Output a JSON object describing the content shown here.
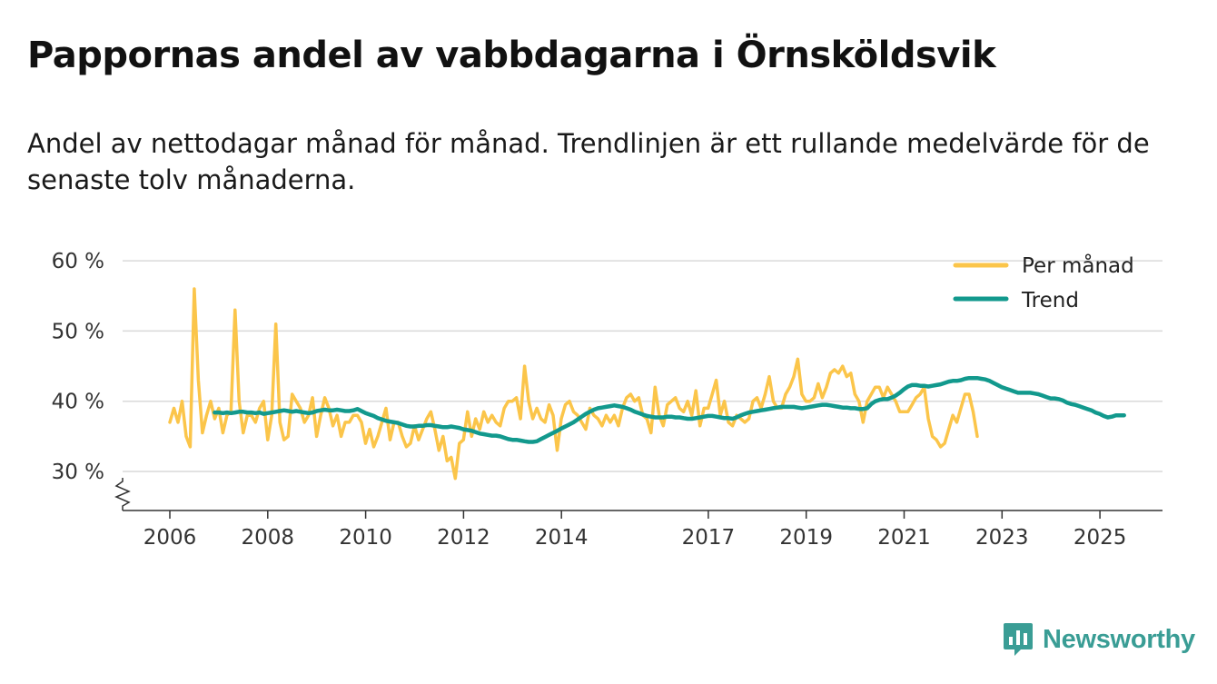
{
  "title": "Pappornas andel av vabbdagarna i Örnsköldsvik",
  "subtitle": "Andel av nettodagar månad för månad. Trendlinjen är ett rullande medelvärde för de senaste tolv månaderna.",
  "brand": {
    "name": "Newsworthy",
    "color": "#3a9d95",
    "icon": "bar-chart-speech-bubble-icon"
  },
  "colors": {
    "monthly": "#fbc54a",
    "trend": "#12998d",
    "grid": "#d9d9d9",
    "axis": "#333333"
  },
  "chart_data": {
    "type": "line",
    "ylim": [
      25,
      60
    ],
    "xlim": [
      2005.75,
      2025.35
    ],
    "yticks": [
      30,
      40,
      50,
      60
    ],
    "ytick_labels": [
      "30 %",
      "40 %",
      "50 %",
      "60 %"
    ],
    "xticks": [
      2006,
      2008,
      2010,
      2012,
      2014,
      2017,
      2019,
      2021,
      2023,
      2025
    ],
    "xtick_labels": [
      "2006",
      "2008",
      "2010",
      "2012",
      "2014",
      "2017",
      "2019",
      "2021",
      "2023",
      "2025"
    ],
    "y_axis_break": true,
    "legend": {
      "position": "top-right",
      "entries": [
        "Per månad",
        "Trend"
      ]
    },
    "series": [
      {
        "name": "Per månad",
        "x_start": 2006.0,
        "step": 0.0833,
        "values": [
          37,
          39,
          37,
          40,
          35,
          33.5,
          56,
          43,
          35.5,
          38,
          40,
          37.5,
          39,
          35.5,
          38,
          38.5,
          53,
          40,
          35.5,
          38,
          38,
          37,
          39,
          40,
          34.5,
          38,
          51,
          37,
          34.5,
          35,
          41,
          40,
          39,
          37,
          38,
          40.5,
          35,
          38,
          40.5,
          39,
          36.5,
          38,
          35,
          37,
          37,
          38,
          38,
          37,
          34,
          36,
          33.5,
          35,
          37,
          39,
          34.5,
          37,
          37,
          35,
          33.5,
          34,
          36.5,
          34.5,
          36,
          37.5,
          38.5,
          36,
          33,
          35,
          31.5,
          32,
          29,
          34,
          34.5,
          38.5,
          35,
          37.5,
          36,
          38.5,
          37,
          38,
          37,
          36.5,
          39,
          40,
          40,
          40.5,
          37.5,
          45,
          40,
          37.5,
          39,
          37.5,
          37,
          39.5,
          38,
          33,
          37.5,
          39.5,
          40,
          38.5,
          38,
          37,
          36,
          39,
          38,
          37.5,
          36.5,
          38,
          37,
          38,
          36.5,
          39,
          40.5,
          41,
          40,
          40.5,
          38,
          37.5,
          35.5,
          42,
          38,
          36.5,
          39.5,
          40,
          40.5,
          39,
          38.5,
          40,
          38,
          41.5,
          36.5,
          39,
          39,
          41,
          43,
          38,
          40,
          37,
          36.5,
          38,
          37.5,
          37,
          37.5,
          40,
          40.5,
          39,
          41,
          43.5,
          40,
          39,
          39,
          41,
          42,
          43.5,
          46,
          41,
          40,
          40,
          40.5,
          42.5,
          40.5,
          42,
          44,
          44.5,
          44,
          45,
          43.5,
          44,
          41,
          40,
          37,
          40,
          41,
          42,
          42,
          40.5,
          42,
          41,
          40,
          38.5,
          38.5,
          38.5,
          39.5,
          40.5,
          41,
          42,
          37.5,
          35,
          34.5,
          33.5,
          34,
          36,
          38,
          37,
          39,
          41,
          41,
          38.5,
          35
        ]
      },
      {
        "name": "Trend",
        "x_start": 2006.9167,
        "step": 0.0833,
        "values": [
          38.4,
          38.4,
          38.3,
          38.4,
          38.3,
          38.4,
          38.5,
          38.5,
          38.4,
          38.4,
          38.3,
          38.4,
          38.2,
          38.3,
          38.4,
          38.5,
          38.6,
          38.7,
          38.6,
          38.5,
          38.6,
          38.5,
          38.4,
          38.3,
          38.4,
          38.6,
          38.7,
          38.8,
          38.7,
          38.7,
          38.8,
          38.7,
          38.6,
          38.6,
          38.7,
          38.9,
          38.6,
          38.3,
          38.1,
          37.9,
          37.6,
          37.4,
          37.2,
          37.1,
          37.0,
          36.9,
          36.7,
          36.5,
          36.4,
          36.4,
          36.5,
          36.5,
          36.6,
          36.6,
          36.5,
          36.4,
          36.3,
          36.3,
          36.4,
          36.3,
          36.2,
          36.0,
          35.9,
          35.8,
          35.6,
          35.4,
          35.3,
          35.2,
          35.1,
          35.1,
          35.0,
          34.8,
          34.6,
          34.5,
          34.5,
          34.4,
          34.3,
          34.2,
          34.2,
          34.3,
          34.6,
          34.9,
          35.2,
          35.5,
          35.8,
          36.1,
          36.4,
          36.7,
          37.0,
          37.4,
          37.8,
          38.2,
          38.5,
          38.8,
          39.0,
          39.1,
          39.2,
          39.3,
          39.4,
          39.3,
          39.2,
          39.0,
          38.8,
          38.5,
          38.3,
          38.1,
          37.9,
          37.8,
          37.7,
          37.7,
          37.7,
          37.8,
          37.8,
          37.7,
          37.7,
          37.6,
          37.5,
          37.5,
          37.6,
          37.7,
          37.8,
          37.9,
          37.9,
          37.8,
          37.7,
          37.6,
          37.6,
          37.5,
          37.7,
          38.0,
          38.2,
          38.4,
          38.5,
          38.6,
          38.7,
          38.8,
          38.9,
          39.0,
          39.1,
          39.2,
          39.2,
          39.2,
          39.2,
          39.1,
          39.0,
          39.1,
          39.2,
          39.3,
          39.4,
          39.5,
          39.5,
          39.4,
          39.3,
          39.2,
          39.1,
          39.1,
          39.0,
          39.0,
          38.9,
          38.9,
          39.0,
          39.6,
          40.0,
          40.2,
          40.3,
          40.3,
          40.5,
          40.8,
          41.2,
          41.7,
          42.1,
          42.3,
          42.3,
          42.2,
          42.2,
          42.1,
          42.2,
          42.3,
          42.4,
          42.6,
          42.8,
          42.9,
          42.9,
          43.0,
          43.2,
          43.3,
          43.3,
          43.3,
          43.2,
          43.1,
          42.9,
          42.6,
          42.3,
          42.0,
          41.8,
          41.6,
          41.4,
          41.2,
          41.2,
          41.2,
          41.2,
          41.1,
          41.0,
          40.8,
          40.6,
          40.4,
          40.4,
          40.3,
          40.1,
          39.8,
          39.6,
          39.5,
          39.3,
          39.1,
          38.9,
          38.7,
          38.4,
          38.2,
          37.9,
          37.7,
          37.8,
          38.0,
          38.0,
          38.0
        ]
      }
    ]
  }
}
